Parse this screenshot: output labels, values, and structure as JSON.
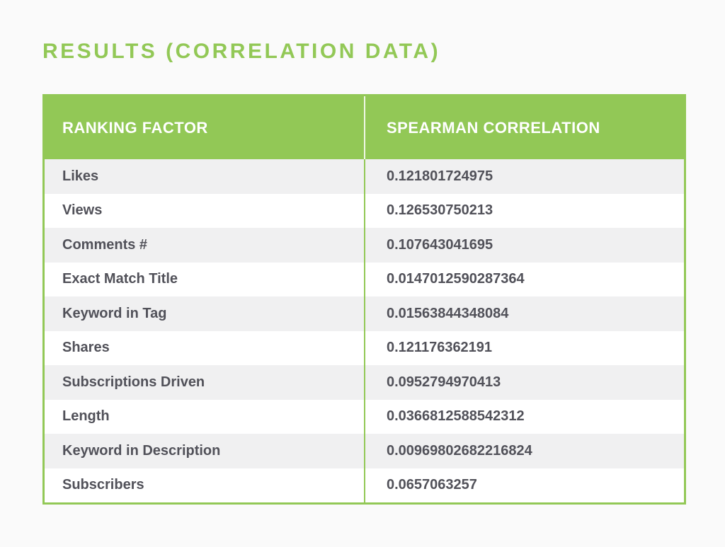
{
  "title": "RESULTS (CORRELATION DATA)",
  "colors": {
    "green": "#92c856",
    "row_alt": "#f0f0f1",
    "row_white": "#ffffff",
    "text_dark": "#515159",
    "header_text": "#ffffff",
    "page_bg": "#fafafa"
  },
  "table": {
    "columns": [
      "RANKING FACTOR",
      "SPEARMAN CORRELATION"
    ],
    "rows": [
      {
        "factor": "Likes",
        "correlation": "0.121801724975"
      },
      {
        "factor": "Views",
        "correlation": "0.126530750213"
      },
      {
        "factor": "Comments #",
        "correlation": "0.107643041695"
      },
      {
        "factor": "Exact Match Title",
        "correlation": "0.0147012590287364"
      },
      {
        "factor": "Keyword in Tag",
        "correlation": "0.01563844348084"
      },
      {
        "factor": "Shares",
        "correlation": "0.121176362191"
      },
      {
        "factor": "Subscriptions Driven",
        "correlation": "0.0952794970413"
      },
      {
        "factor": "Length",
        "correlation": "0.0366812588542312"
      },
      {
        "factor": "Keyword in Description",
        "correlation": "0.00969802682216824"
      },
      {
        "factor": "Subscribers",
        "correlation": "0.0657063257"
      }
    ]
  },
  "chart_data": {
    "type": "table",
    "title": "RESULTS (CORRELATION DATA)",
    "columns": [
      "RANKING FACTOR",
      "SPEARMAN CORRELATION"
    ],
    "categories": [
      "Likes",
      "Views",
      "Comments #",
      "Exact Match Title",
      "Keyword in Tag",
      "Shares",
      "Subscriptions Driven",
      "Length",
      "Keyword in Description",
      "Subscribers"
    ],
    "values": [
      0.121801724975,
      0.126530750213,
      0.107643041695,
      0.0147012590287364,
      0.01563844348084,
      0.121176362191,
      0.0952794970413,
      0.0366812588542312,
      0.00969802682216824,
      0.0657063257
    ]
  }
}
